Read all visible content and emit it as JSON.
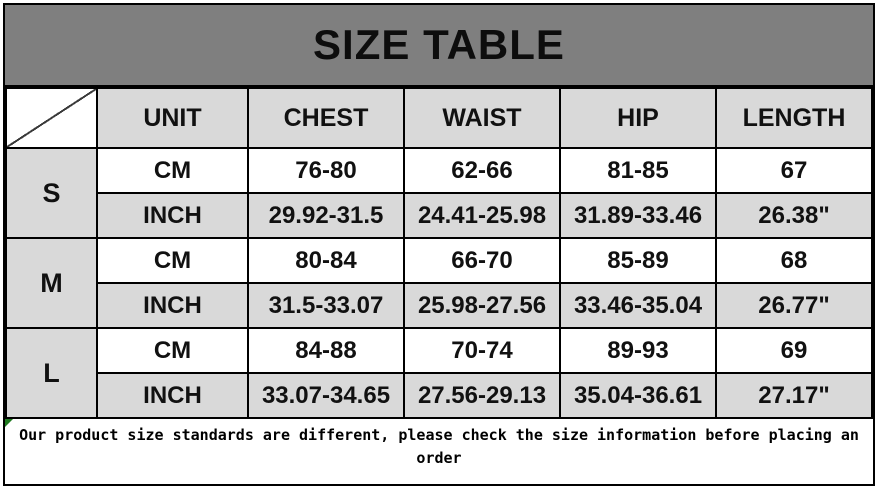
{
  "title": "SIZE TABLE",
  "table": {
    "columns": [
      "UNIT",
      "CHEST",
      "WAIST",
      "HIP",
      "LENGTH"
    ],
    "unit_labels": {
      "cm": "CM",
      "inch": "INCH"
    },
    "rows": [
      {
        "size": "S",
        "cm": [
          "76-80",
          "62-66",
          "81-85",
          "67"
        ],
        "inch": [
          "29.92-31.5",
          "24.41-25.98",
          "31.89-33.46",
          "26.38\""
        ]
      },
      {
        "size": "M",
        "cm": [
          "80-84",
          "66-70",
          "85-89",
          "68"
        ],
        "inch": [
          "31.5-33.07",
          "25.98-27.56",
          "33.46-35.04",
          "26.77\""
        ]
      },
      {
        "size": "L",
        "cm": [
          "84-88",
          "70-74",
          "89-93",
          "69"
        ],
        "inch": [
          "33.07-34.65",
          "27.56-29.13",
          "35.04-36.61",
          "27.17\""
        ]
      }
    ]
  },
  "note": "Our product size standards are different, please check the size information before placing an order",
  "icons": {
    "corner_marker": "excel-green-triangle"
  },
  "colors": {
    "title_bar_bg": "#7f7f7f",
    "band_bg": "#d9d9d9",
    "white_bg": "#ffffff",
    "border": "#000000",
    "marker_green": "#1f7a1f",
    "text": "#111111"
  }
}
